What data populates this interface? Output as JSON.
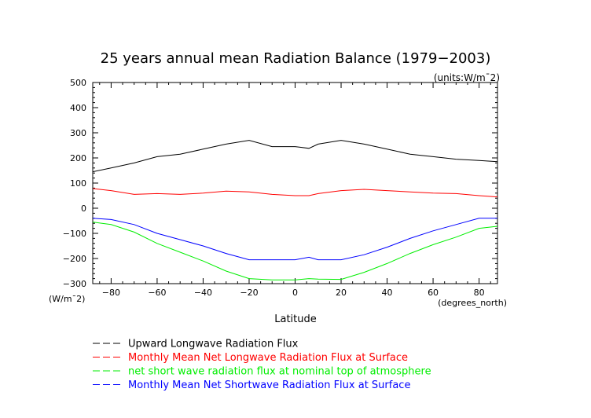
{
  "chart_data": {
    "type": "line",
    "title": "25 years annual mean Radiation Balance (1979−2003)",
    "units_note": "(units:W/m¯2)",
    "xlabel": "Latitude",
    "x_units": "(degrees_north)",
    "y_units": "(W/m¯2)",
    "xlim": [
      -88,
      88
    ],
    "ylim": [
      -300,
      500
    ],
    "x_ticks": [
      -80,
      -60,
      -40,
      -20,
      0,
      20,
      40,
      60,
      80
    ],
    "x_tick_labels": [
      "−80",
      "−60",
      "−40",
      "−20",
      "0",
      "20",
      "40",
      "60",
      "80"
    ],
    "y_ticks": [
      -300,
      -200,
      -100,
      0,
      100,
      200,
      300,
      400,
      500
    ],
    "y_tick_labels": [
      "−300",
      "−200",
      "−100",
      "0",
      "100",
      "200",
      "300",
      "400",
      "500"
    ],
    "grid": false,
    "legend_position": "bottom",
    "x": [
      -88,
      -80,
      -70,
      -60,
      -50,
      -40,
      -30,
      -20,
      -10,
      0,
      6,
      10,
      20,
      30,
      40,
      50,
      60,
      70,
      80,
      88
    ],
    "series": [
      {
        "name": "Upward Longwave Radiation Flux",
        "color": "#000000",
        "values": [
          145,
          160,
          180,
          205,
          215,
          235,
          255,
          270,
          245,
          245,
          238,
          255,
          270,
          255,
          235,
          215,
          205,
          195,
          190,
          185
        ]
      },
      {
        "name": "Monthly Mean Net Longwave Radiation Flux at Surface",
        "color": "#ff0000",
        "values": [
          78,
          70,
          55,
          58,
          55,
          60,
          68,
          65,
          55,
          50,
          50,
          58,
          70,
          75,
          70,
          65,
          60,
          58,
          50,
          45
        ]
      },
      {
        "name": "net short wave radiation flux at nominal top of atmosphere",
        "color": "#00ee00",
        "values": [
          -55,
          -65,
          -95,
          -140,
          -175,
          -210,
          -250,
          -280,
          -285,
          -285,
          -280,
          -282,
          -283,
          -255,
          -220,
          -180,
          -145,
          -115,
          -80,
          -72
        ]
      },
      {
        "name": "Monthly Mean Net Shortwave Radiation Flux at Surface",
        "color": "#0000ff",
        "values": [
          -40,
          -45,
          -65,
          -100,
          -125,
          -150,
          -180,
          -205,
          -205,
          -205,
          -195,
          -205,
          -205,
          -185,
          -155,
          -120,
          -90,
          -65,
          -40,
          -40
        ]
      }
    ]
  }
}
